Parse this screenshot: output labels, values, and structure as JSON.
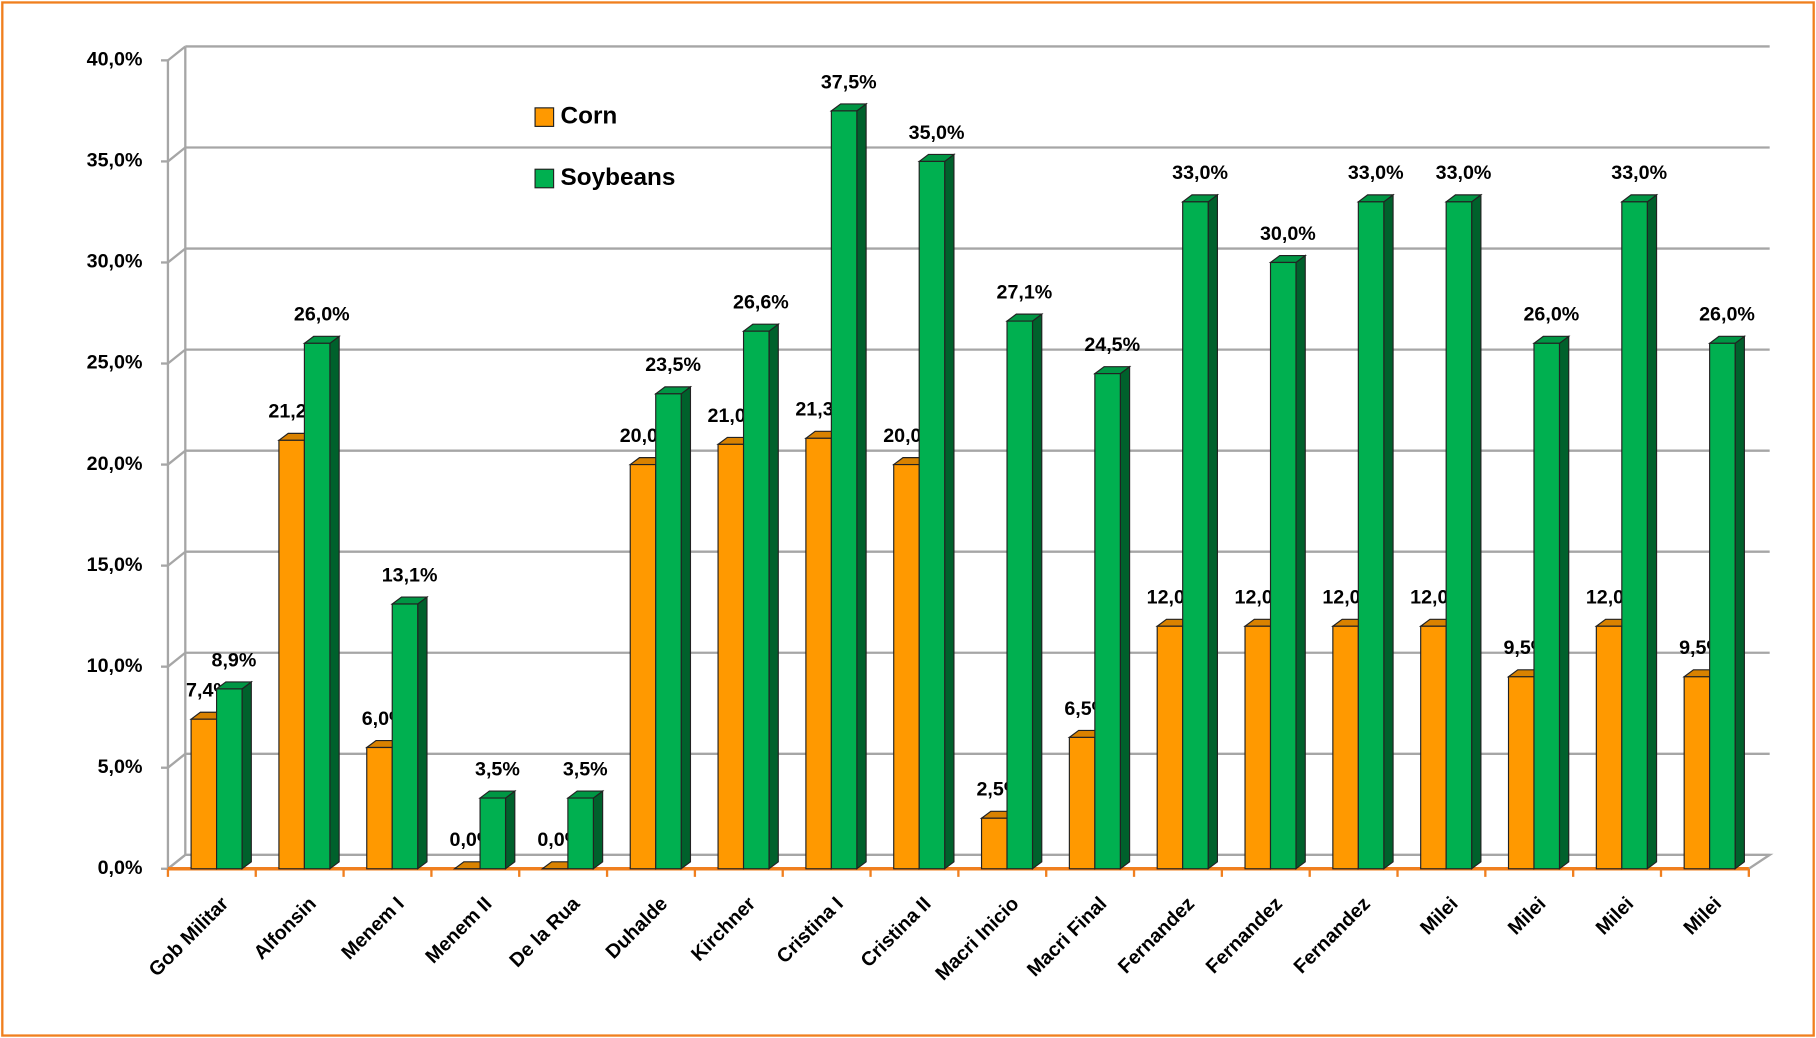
{
  "chart_data": {
    "type": "bar3d",
    "categories": [
      "Gob Militar",
      "Alfonsin",
      "Menem I",
      "Menem II",
      "De la Rua",
      "Duhalde",
      "Kirchner",
      "Cristina I",
      "Cristina II",
      "Macri Inicio",
      "Macri Final",
      "Fernandez",
      "Fernandez",
      "Fernandez",
      "Milei",
      "Milei",
      "Milei",
      "Milei"
    ],
    "series": [
      {
        "name": "Corn",
        "color": "#ff9900",
        "values": [
          7.4,
          21.2,
          6.0,
          0.0,
          0.0,
          20.0,
          21.0,
          21.3,
          20.0,
          2.5,
          6.5,
          12.0,
          12.0,
          12.0,
          12.0,
          9.5,
          12.0,
          9.5
        ],
        "value_labels": [
          "7,4%",
          "21,2%",
          "6,0%",
          "0,0%",
          "0,0%",
          "20,0%",
          "21,0%",
          "21,3%",
          "20,0%",
          "2,5%",
          "6,5%",
          "12,0%",
          "12,0%",
          "12,0%",
          "12,0%",
          "9,5%",
          "12,0%",
          "9,5%"
        ]
      },
      {
        "name": "Soybeans",
        "color": "#00b050",
        "values": [
          8.9,
          26.0,
          13.1,
          3.5,
          3.5,
          23.5,
          26.6,
          37.5,
          35.0,
          27.1,
          24.5,
          33.0,
          30.0,
          33.0,
          33.0,
          26.0,
          33.0,
          26.0
        ],
        "value_labels": [
          "8,9%",
          "26,0%",
          "13,1%",
          "3,5%",
          "3,5%",
          "23,5%",
          "26,6%",
          "37,5%",
          "35,0%",
          "27,1%",
          "24,5%",
          "33,0%",
          "30,0%",
          "33,0%",
          "33,0%",
          "26,0%",
          "33,0%",
          "26,0%"
        ]
      }
    ],
    "ylim": [
      0,
      40
    ],
    "yticks": [
      {
        "value": 0,
        "label": "0,0%"
      },
      {
        "value": 5,
        "label": "5,0%"
      },
      {
        "value": 10,
        "label": "10,0%"
      },
      {
        "value": 15,
        "label": "15,0%"
      },
      {
        "value": 20,
        "label": "20,0%"
      },
      {
        "value": 25,
        "label": "25,0%"
      },
      {
        "value": 30,
        "label": "30,0%"
      },
      {
        "value": 35,
        "label": "35,0%"
      },
      {
        "value": 40,
        "label": "40,0%"
      }
    ],
    "grid": true,
    "legend": "upper-left"
  }
}
